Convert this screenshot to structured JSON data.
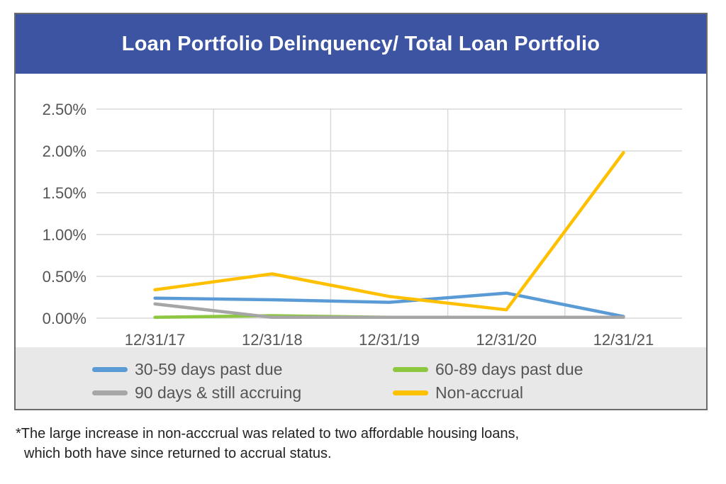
{
  "chart_data": {
    "type": "line",
    "title": "Loan Portfolio Delinquency/ Total Loan Portfolio",
    "categories": [
      "12/31/17",
      "12/31/18",
      "12/31/19",
      "12/31/20",
      "12/31/21"
    ],
    "y_tick_labels": [
      "2.50%",
      "2.00%",
      "1.50%",
      "1.00%",
      "0.50%",
      "0.00%"
    ],
    "ylim": [
      0,
      2.5
    ],
    "y_unit": "%",
    "grid": "horizontal and vertical",
    "legend_position": "bottom",
    "series": [
      {
        "name": "30-59 days past due",
        "color": "#5b9bd5",
        "values": [
          0.24,
          0.22,
          0.19,
          0.3,
          0.02
        ]
      },
      {
        "name": "60-89 days past due",
        "color": "#8dc63f",
        "values": [
          0.01,
          0.03,
          0.01,
          0.01,
          0.01
        ]
      },
      {
        "name": "90 days & still accruing",
        "color": "#a6a6a6",
        "values": [
          0.17,
          0.01,
          0.01,
          0.01,
          0.01
        ]
      },
      {
        "name": "Non-accrual",
        "color": "#ffc000",
        "values": [
          0.34,
          0.53,
          0.26,
          0.1,
          1.98
        ]
      }
    ]
  },
  "colors": {
    "title_background": "#3d54a3",
    "legend_background": "#e8e8e8",
    "gridline": "#d9d9d9",
    "axis_text": "#555555"
  },
  "footnote": {
    "line1": "*The large increase in non-acccrual was related to two affordable housing loans,",
    "line2": "which both have since returned to accrual status."
  }
}
